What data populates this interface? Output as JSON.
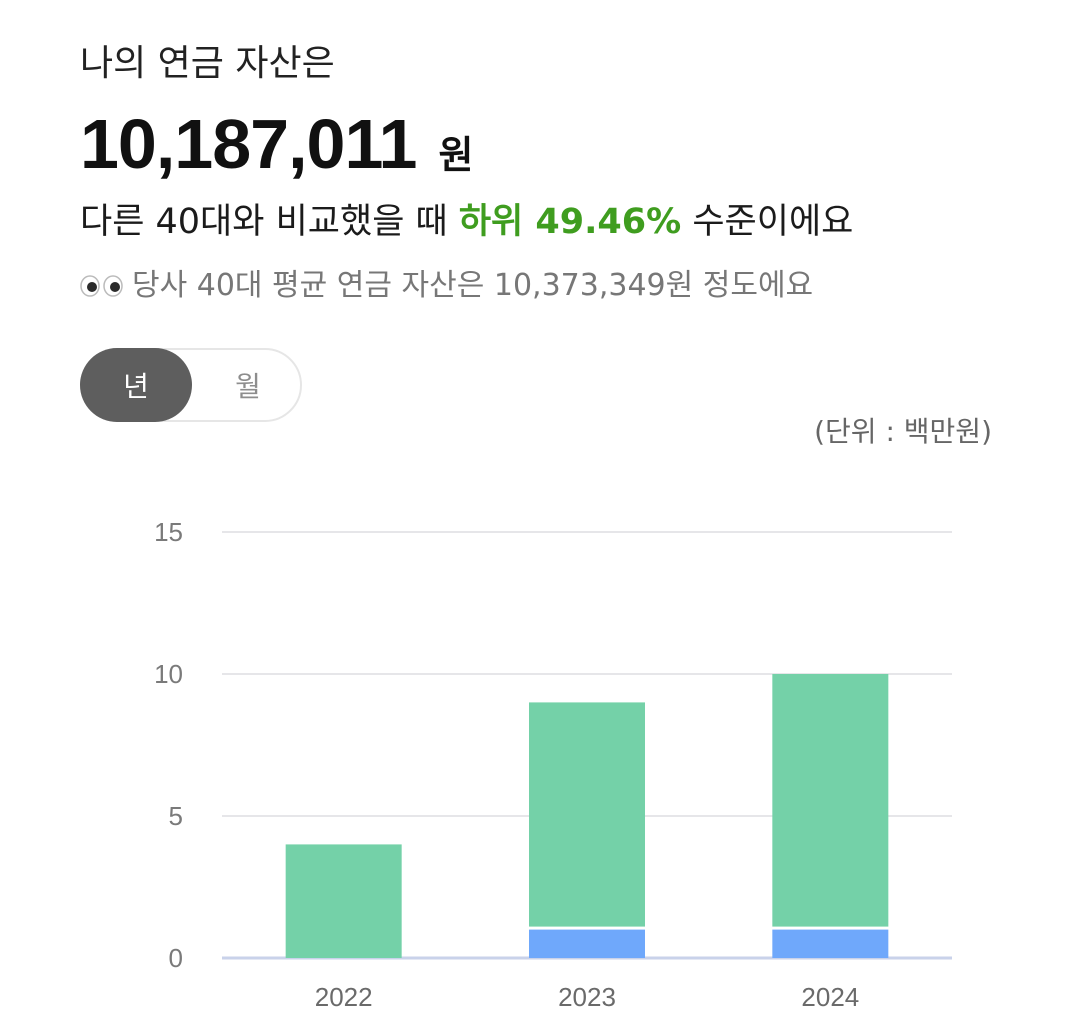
{
  "header": {
    "title": "나의 연금 자산은"
  },
  "summary": {
    "amount": "10,187,011",
    "amount_unit": "원",
    "compare_prefix": "다른 40대와 비교했을 때 ",
    "compare_highlight": "하위 49.46%",
    "compare_suffix": " 수준이에요",
    "average_text": "당사 40대 평균 연금 자산은 10,373,349원 정도에요",
    "average_icon": "eyes-icon"
  },
  "toggle": {
    "options": [
      "년",
      "월"
    ],
    "selected": "년"
  },
  "unit_note": "(단위 : 백만원)",
  "colors": {
    "green_series": "#74d1a8",
    "blue_series": "#6fa8fb",
    "highlight": "#3f9d1f",
    "grid": "#e6e6e9",
    "baseline": "#c9d2ea"
  },
  "chart_data": {
    "type": "bar",
    "stacked": true,
    "categories": [
      "2022",
      "2023",
      "2024"
    ],
    "series": [
      {
        "values": [
          0,
          1,
          1
        ],
        "color": "#6fa8fb"
      },
      {
        "values": [
          4,
          8,
          9
        ],
        "color": "#74d1a8"
      }
    ],
    "ylim": [
      0,
      15
    ],
    "yticks": [
      0,
      5,
      10,
      15
    ],
    "grid": true
  }
}
